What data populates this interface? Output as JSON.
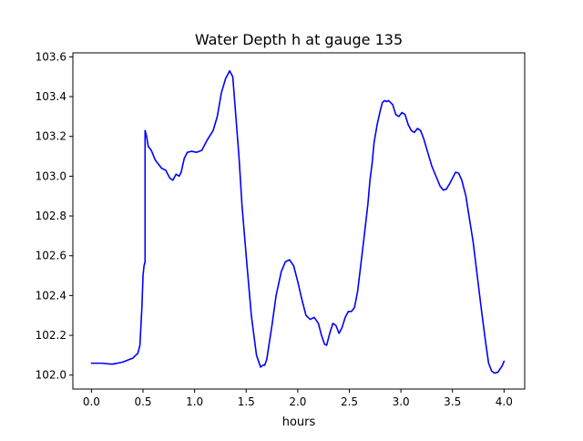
{
  "chart_data": {
    "type": "line",
    "title": "Water Depth h at gauge 135",
    "xlabel": "hours",
    "ylabel": "",
    "xlim": [
      -0.18,
      4.2
    ],
    "ylim": [
      101.93,
      103.62
    ],
    "xticks": [
      0.0,
      0.5,
      1.0,
      1.5,
      2.0,
      2.5,
      3.0,
      3.5,
      4.0
    ],
    "xtick_labels": [
      "0.0",
      "0.5",
      "1.0",
      "1.5",
      "2.0",
      "2.5",
      "3.0",
      "3.5",
      "4.0"
    ],
    "yticks": [
      102.0,
      102.2,
      102.4,
      102.6,
      102.8,
      103.0,
      103.2,
      103.4,
      103.6
    ],
    "ytick_labels": [
      "102.0",
      "102.2",
      "102.4",
      "102.6",
      "102.8",
      "103.0",
      "103.2",
      "103.4",
      "103.6"
    ],
    "grid": false,
    "legend": "none",
    "series": [
      {
        "color": "#0000ff",
        "points": [
          [
            0.0,
            102.06
          ],
          [
            0.1,
            102.06
          ],
          [
            0.2,
            102.055
          ],
          [
            0.3,
            102.065
          ],
          [
            0.4,
            102.085
          ],
          [
            0.45,
            102.11
          ],
          [
            0.47,
            102.15
          ],
          [
            0.48,
            102.25
          ],
          [
            0.49,
            102.35
          ],
          [
            0.5,
            102.5
          ],
          [
            0.51,
            102.55
          ],
          [
            0.52,
            102.57
          ],
          [
            0.52,
            103.23
          ],
          [
            0.535,
            103.2
          ],
          [
            0.55,
            103.15
          ],
          [
            0.58,
            103.13
          ],
          [
            0.62,
            103.08
          ],
          [
            0.68,
            103.04
          ],
          [
            0.72,
            103.03
          ],
          [
            0.76,
            102.99
          ],
          [
            0.79,
            102.98
          ],
          [
            0.82,
            103.01
          ],
          [
            0.85,
            103.0
          ],
          [
            0.87,
            103.02
          ],
          [
            0.9,
            103.09
          ],
          [
            0.93,
            103.12
          ],
          [
            0.97,
            103.125
          ],
          [
            1.02,
            103.12
          ],
          [
            1.07,
            103.13
          ],
          [
            1.12,
            103.18
          ],
          [
            1.18,
            103.23
          ],
          [
            1.22,
            103.3
          ],
          [
            1.26,
            103.42
          ],
          [
            1.3,
            103.49
          ],
          [
            1.34,
            103.53
          ],
          [
            1.37,
            103.5
          ],
          [
            1.4,
            103.3
          ],
          [
            1.43,
            103.1
          ],
          [
            1.46,
            102.85
          ],
          [
            1.5,
            102.6
          ],
          [
            1.55,
            102.3
          ],
          [
            1.6,
            102.1
          ],
          [
            1.62,
            102.07
          ],
          [
            1.64,
            102.04
          ],
          [
            1.66,
            102.05
          ],
          [
            1.68,
            102.05
          ],
          [
            1.7,
            102.08
          ],
          [
            1.72,
            102.15
          ],
          [
            1.75,
            102.25
          ],
          [
            1.79,
            102.4
          ],
          [
            1.84,
            102.52
          ],
          [
            1.88,
            102.57
          ],
          [
            1.92,
            102.58
          ],
          [
            1.96,
            102.55
          ],
          [
            2.0,
            102.47
          ],
          [
            2.04,
            102.38
          ],
          [
            2.08,
            102.3
          ],
          [
            2.12,
            102.28
          ],
          [
            2.16,
            102.29
          ],
          [
            2.2,
            102.26
          ],
          [
            2.23,
            102.2
          ],
          [
            2.26,
            102.155
          ],
          [
            2.28,
            102.15
          ],
          [
            2.31,
            102.21
          ],
          [
            2.34,
            102.26
          ],
          [
            2.37,
            102.25
          ],
          [
            2.4,
            102.21
          ],
          [
            2.43,
            102.24
          ],
          [
            2.46,
            102.29
          ],
          [
            2.49,
            102.32
          ],
          [
            2.52,
            102.32
          ],
          [
            2.55,
            102.34
          ],
          [
            2.58,
            102.42
          ],
          [
            2.61,
            102.55
          ],
          [
            2.64,
            102.68
          ],
          [
            2.68,
            102.86
          ],
          [
            2.7,
            102.98
          ],
          [
            2.72,
            103.06
          ],
          [
            2.74,
            103.17
          ],
          [
            2.77,
            103.26
          ],
          [
            2.8,
            103.33
          ],
          [
            2.82,
            103.37
          ],
          [
            2.84,
            103.38
          ],
          [
            2.86,
            103.375
          ],
          [
            2.88,
            103.38
          ],
          [
            2.9,
            103.37
          ],
          [
            2.92,
            103.36
          ],
          [
            2.95,
            103.31
          ],
          [
            2.98,
            103.3
          ],
          [
            3.01,
            103.32
          ],
          [
            3.04,
            103.31
          ],
          [
            3.07,
            103.26
          ],
          [
            3.1,
            103.23
          ],
          [
            3.13,
            103.22
          ],
          [
            3.16,
            103.24
          ],
          [
            3.19,
            103.23
          ],
          [
            3.22,
            103.19
          ],
          [
            3.26,
            103.12
          ],
          [
            3.3,
            103.05
          ],
          [
            3.34,
            103.0
          ],
          [
            3.38,
            102.95
          ],
          [
            3.41,
            102.93
          ],
          [
            3.44,
            102.935
          ],
          [
            3.47,
            102.96
          ],
          [
            3.5,
            102.99
          ],
          [
            3.53,
            103.02
          ],
          [
            3.56,
            103.015
          ],
          [
            3.59,
            102.98
          ],
          [
            3.63,
            102.9
          ],
          [
            3.66,
            102.8
          ],
          [
            3.7,
            102.67
          ],
          [
            3.74,
            102.5
          ],
          [
            3.78,
            102.33
          ],
          [
            3.82,
            102.17
          ],
          [
            3.85,
            102.06
          ],
          [
            3.88,
            102.02
          ],
          [
            3.91,
            102.01
          ],
          [
            3.94,
            102.015
          ],
          [
            3.96,
            102.03
          ],
          [
            3.98,
            102.045
          ],
          [
            4.0,
            102.07
          ]
        ]
      }
    ]
  }
}
